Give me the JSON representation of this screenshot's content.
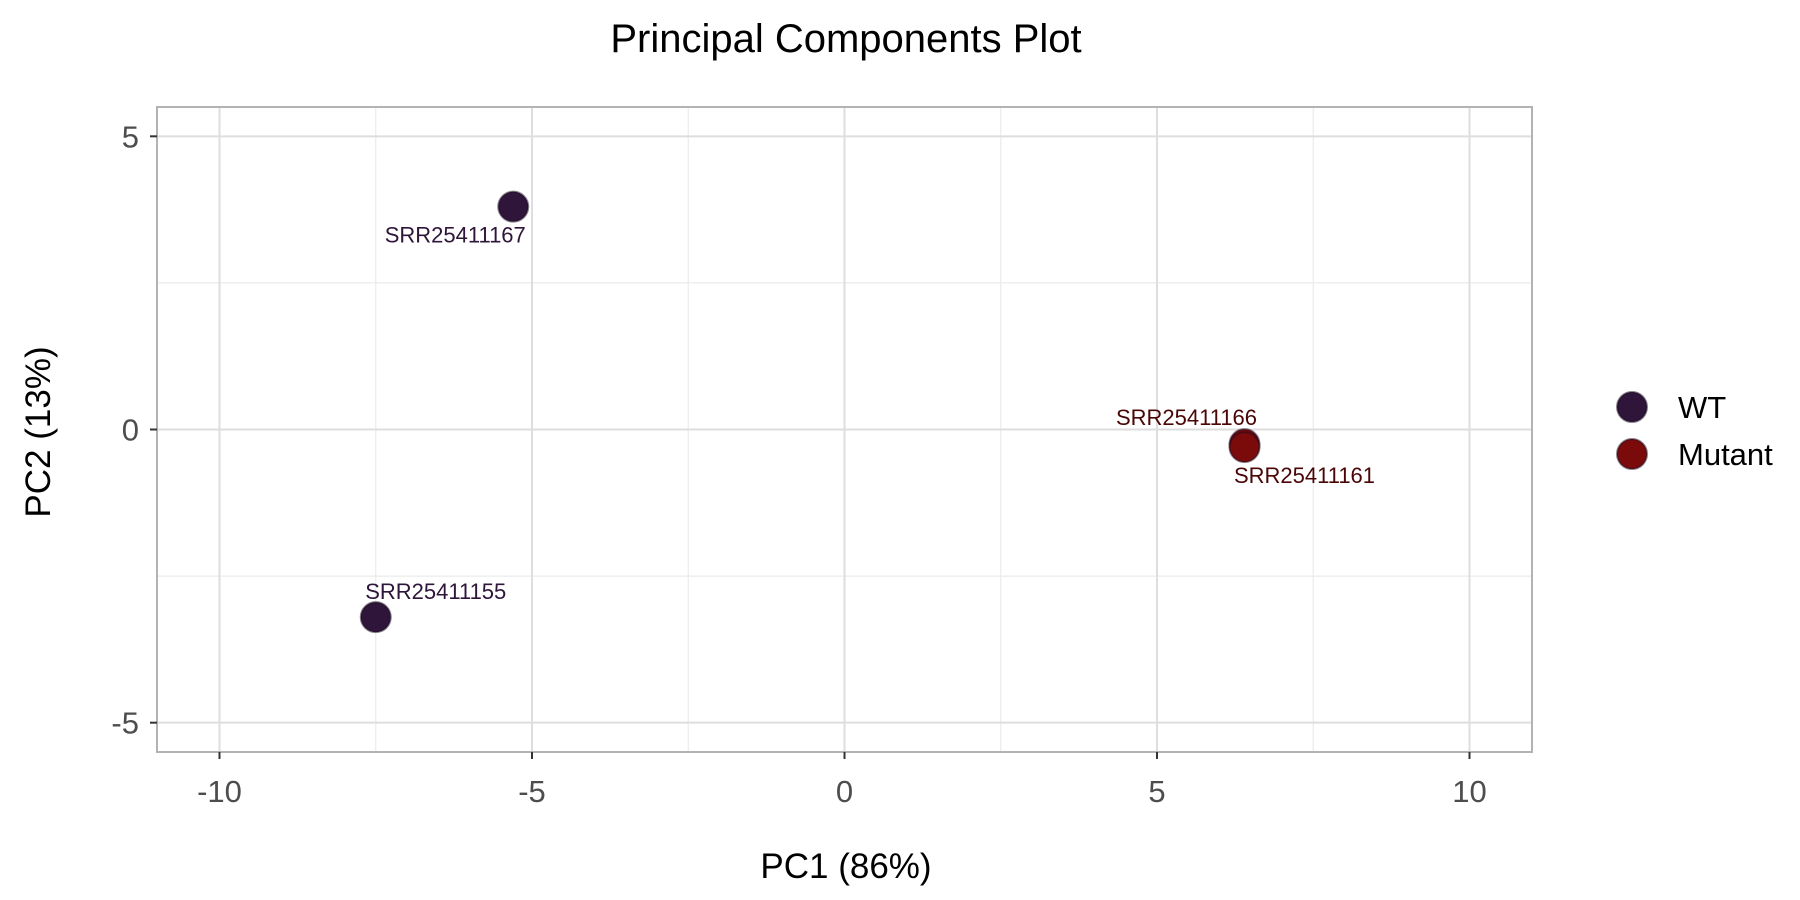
{
  "chart_data": {
    "type": "scatter",
    "title": "Principal Components Plot",
    "xlabel": "PC1 (86%)",
    "ylabel": "PC2 (13%)",
    "xlim": [
      -11,
      11
    ],
    "ylim": [
      -5.5,
      5.5
    ],
    "xticks": [
      -10,
      -5,
      0,
      5,
      10
    ],
    "xtick_labels": [
      "-10",
      "-5",
      "0",
      "5",
      "10"
    ],
    "yticks": [
      -5,
      0,
      5
    ],
    "ytick_labels": [
      "-5",
      "0",
      "5"
    ],
    "grid": true,
    "legend": "right",
    "series": [
      {
        "name": "WT",
        "color": "#2e1539",
        "label_color": "#2e1539",
        "points": [
          {
            "x": -5.3,
            "y": 3.8,
            "label": "SRR25411167",
            "label_position": "below"
          },
          {
            "x": -7.5,
            "y": -3.2,
            "label": "SRR25411155",
            "label_position": "above"
          }
        ]
      },
      {
        "name": "Mutant",
        "color": "#7b0a0a",
        "label_color": "#4a0606",
        "points": [
          {
            "x": 6.4,
            "y": -0.25,
            "label": "SRR25411166",
            "label_position": "above-left"
          },
          {
            "x": 6.4,
            "y": -0.3,
            "label": "SRR25411161",
            "label_position": "below-right"
          }
        ]
      }
    ]
  }
}
